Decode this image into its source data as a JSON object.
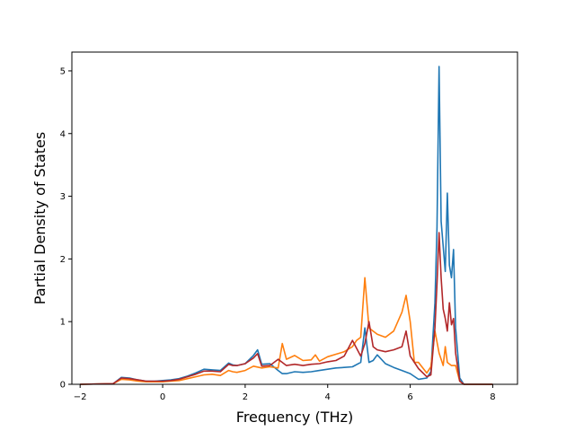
{
  "chart_data": {
    "type": "line",
    "title": "",
    "xlabel": "Frequency (THz)",
    "ylabel": "Partial Density of States",
    "xlim": [
      -2.2,
      8.6
    ],
    "ylim": [
      0,
      5.3
    ],
    "xticks": [
      -2,
      0,
      2,
      4,
      6,
      8
    ],
    "yticks": [
      0,
      1,
      2,
      3,
      4,
      5
    ],
    "grid": false,
    "legend": "none",
    "series": [
      {
        "color": "#1f77b4",
        "x": [
          -2.0,
          -1.2,
          -1.0,
          -0.8,
          -0.6,
          -0.4,
          -0.2,
          0.0,
          0.2,
          0.4,
          0.6,
          0.8,
          1.0,
          1.2,
          1.4,
          1.6,
          1.7,
          1.8,
          2.0,
          2.2,
          2.3,
          2.4,
          2.6,
          2.8,
          2.9,
          3.0,
          3.2,
          3.4,
          3.6,
          3.8,
          4.0,
          4.2,
          4.4,
          4.6,
          4.8,
          4.9,
          5.0,
          5.1,
          5.2,
          5.4,
          5.6,
          5.8,
          6.0,
          6.2,
          6.4,
          6.5,
          6.6,
          6.65,
          6.7,
          6.75,
          6.8,
          6.85,
          6.9,
          6.95,
          7.0,
          7.05,
          7.1,
          7.2,
          7.3,
          8.0
        ],
        "y": [
          0,
          0.01,
          0.11,
          0.1,
          0.07,
          0.05,
          0.05,
          0.06,
          0.07,
          0.09,
          0.13,
          0.18,
          0.24,
          0.23,
          0.22,
          0.34,
          0.31,
          0.3,
          0.33,
          0.46,
          0.55,
          0.32,
          0.33,
          0.22,
          0.17,
          0.17,
          0.2,
          0.19,
          0.2,
          0.22,
          0.24,
          0.26,
          0.27,
          0.28,
          0.35,
          0.9,
          0.35,
          0.38,
          0.47,
          0.33,
          0.27,
          0.22,
          0.17,
          0.08,
          0.1,
          0.2,
          1.3,
          2.5,
          5.07,
          2.6,
          2.2,
          1.8,
          3.05,
          1.9,
          1.7,
          2.15,
          0.9,
          0.1,
          0.0,
          0.0
        ]
      },
      {
        "color": "#ff7f0e",
        "x": [
          -2.0,
          -1.2,
          -1.0,
          -0.8,
          -0.6,
          -0.4,
          -0.2,
          0.0,
          0.2,
          0.4,
          0.6,
          0.8,
          1.0,
          1.2,
          1.4,
          1.6,
          1.7,
          1.8,
          2.0,
          2.2,
          2.4,
          2.6,
          2.8,
          2.9,
          3.0,
          3.2,
          3.4,
          3.6,
          3.7,
          3.8,
          4.0,
          4.2,
          4.4,
          4.6,
          4.7,
          4.8,
          4.9,
          5.0,
          5.1,
          5.2,
          5.4,
          5.6,
          5.8,
          5.9,
          6.0,
          6.1,
          6.2,
          6.4,
          6.5,
          6.6,
          6.7,
          6.8,
          6.85,
          6.9,
          7.0,
          7.1,
          7.2,
          7.3,
          8.0
        ],
        "y": [
          0,
          0.01,
          0.08,
          0.07,
          0.05,
          0.04,
          0.04,
          0.04,
          0.05,
          0.06,
          0.09,
          0.12,
          0.15,
          0.16,
          0.14,
          0.22,
          0.2,
          0.19,
          0.22,
          0.29,
          0.26,
          0.28,
          0.26,
          0.65,
          0.4,
          0.46,
          0.38,
          0.39,
          0.47,
          0.37,
          0.44,
          0.48,
          0.52,
          0.6,
          0.7,
          0.75,
          1.7,
          0.9,
          0.85,
          0.8,
          0.75,
          0.85,
          1.15,
          1.42,
          1.0,
          0.35,
          0.35,
          0.18,
          0.28,
          0.85,
          0.5,
          0.3,
          0.6,
          0.35,
          0.3,
          0.3,
          0.05,
          0.0,
          0.0
        ]
      },
      {
        "color": "#b2282a",
        "x": [
          -2.0,
          -1.2,
          -1.0,
          -0.8,
          -0.6,
          -0.4,
          -0.2,
          0.0,
          0.2,
          0.4,
          0.6,
          0.8,
          1.0,
          1.2,
          1.4,
          1.6,
          1.7,
          1.8,
          2.0,
          2.2,
          2.3,
          2.4,
          2.6,
          2.8,
          3.0,
          3.2,
          3.4,
          3.6,
          3.8,
          4.0,
          4.2,
          4.4,
          4.6,
          4.8,
          4.9,
          5.0,
          5.1,
          5.2,
          5.4,
          5.6,
          5.8,
          5.9,
          6.0,
          6.2,
          6.4,
          6.5,
          6.6,
          6.65,
          6.7,
          6.75,
          6.8,
          6.85,
          6.9,
          6.95,
          7.0,
          7.05,
          7.1,
          7.2,
          7.3,
          8.0
        ],
        "y": [
          0,
          0.01,
          0.1,
          0.09,
          0.07,
          0.05,
          0.05,
          0.05,
          0.06,
          0.08,
          0.12,
          0.16,
          0.21,
          0.21,
          0.2,
          0.32,
          0.3,
          0.3,
          0.33,
          0.42,
          0.49,
          0.29,
          0.3,
          0.4,
          0.3,
          0.32,
          0.3,
          0.32,
          0.33,
          0.36,
          0.38,
          0.45,
          0.7,
          0.45,
          0.65,
          1.0,
          0.6,
          0.55,
          0.52,
          0.55,
          0.6,
          0.85,
          0.45,
          0.25,
          0.12,
          0.15,
          0.9,
          1.6,
          2.42,
          1.7,
          1.2,
          1.05,
          0.85,
          1.3,
          0.95,
          1.05,
          0.5,
          0.05,
          0.0,
          0.0
        ]
      }
    ]
  }
}
